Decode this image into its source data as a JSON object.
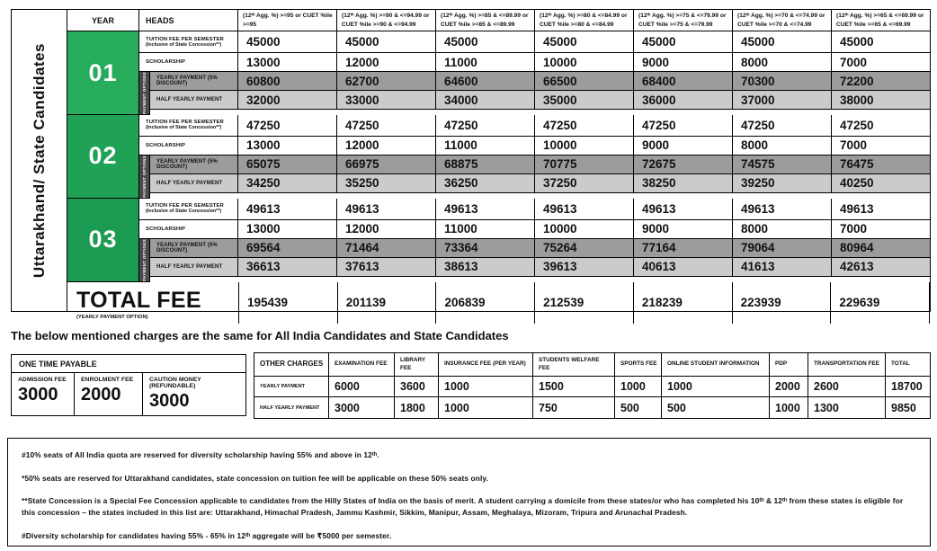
{
  "colors": {
    "year_greens": [
      "#27AC5C",
      "#1FA156",
      "#1B9A52"
    ],
    "yearly_row_bg": "#9c9c9c",
    "half_row_bg": "#cbcbcb",
    "strip_bg": "#4a4a4a"
  },
  "main_table": {
    "side_label": "Uttarakhand/ State Candidates",
    "year_header": "YEAR",
    "heads_header": "HEADS",
    "payment_options_label": "PAYMENT OPTIONS",
    "column_headers": [
      "(12ᵗʰ Agg. %) >=95 or CUET %ile >=95",
      "(12ᵗʰ Agg. %) >=90 & <=94.99 or CUET %ile >=90 & <=94.99",
      "(12ᵗʰ Agg. %) >=85 & <=89.99 or CUET %ile >=85 & <=89.99",
      "(12ᵗʰ Agg. %) >=80 & <=84.99 or CUET %ile >=80 & <=84.99",
      "(12ᵗʰ Agg. %) >=75 & <=79.99 or CUET %ile >=75 & <=79.99",
      "(12ᵗʰ Agg. %) >=70 & <=74.99 or CUET %ile >=70 & <=74.99",
      "(12ᵗʰ Agg. %) >=65 & <=69.99 or CUET %ile >=65 & <=69.99"
    ],
    "row_labels": {
      "tuition": "TUITION FEE PER SEMESTER",
      "tuition_sub": "(Inclusive of State Concession**)",
      "scholarship": "SCHOLARSHIP",
      "yearly": "YEARLY PAYMENT (5% DISCOUNT)",
      "half_yearly": "HALF YEARLY PAYMENT"
    },
    "years": [
      {
        "year": "01",
        "tuition": [
          "45000",
          "45000",
          "45000",
          "45000",
          "45000",
          "45000",
          "45000"
        ],
        "scholarship": [
          "13000",
          "12000",
          "11000",
          "10000",
          "9000",
          "8000",
          "7000"
        ],
        "yearly": [
          "60800",
          "62700",
          "64600",
          "66500",
          "68400",
          "70300",
          "72200"
        ],
        "half_yearly": [
          "32000",
          "33000",
          "34000",
          "35000",
          "36000",
          "37000",
          "38000"
        ]
      },
      {
        "year": "02",
        "tuition": [
          "47250",
          "47250",
          "47250",
          "47250",
          "47250",
          "47250",
          "47250"
        ],
        "scholarship": [
          "13000",
          "12000",
          "11000",
          "10000",
          "9000",
          "8000",
          "7000"
        ],
        "yearly": [
          "65075",
          "66975",
          "68875",
          "70775",
          "72675",
          "74575",
          "76475"
        ],
        "half_yearly": [
          "34250",
          "35250",
          "36250",
          "37250",
          "38250",
          "39250",
          "40250"
        ]
      },
      {
        "year": "03",
        "tuition": [
          "49613",
          "49613",
          "49613",
          "49613",
          "49613",
          "49613",
          "49613"
        ],
        "scholarship": [
          "13000",
          "12000",
          "11000",
          "10000",
          "9000",
          "8000",
          "7000"
        ],
        "yearly": [
          "69564",
          "71464",
          "73364",
          "75264",
          "77164",
          "79064",
          "80964"
        ],
        "half_yearly": [
          "36613",
          "37613",
          "38613",
          "39613",
          "40613",
          "41613",
          "42613"
        ]
      }
    ],
    "total": {
      "label": "TOTAL FEE",
      "sublabel": "(YEARLY PAYMENT OPTION)",
      "values": [
        "195439",
        "201139",
        "206839",
        "212539",
        "218239",
        "223939",
        "229639"
      ]
    }
  },
  "below_note": "The below mentioned charges are the same for All India Candidates and State Candidates",
  "one_time_payable": {
    "header": "ONE TIME PAYABLE",
    "items": [
      {
        "label": "ADMISSION FEE",
        "value": "3000"
      },
      {
        "label": "ENROLMENT FEE",
        "value": "2000"
      },
      {
        "label": "CAUTION MONEY (REFUNDABLE)",
        "value": "3000"
      }
    ]
  },
  "other_charges": {
    "header": "OTHER CHARGES",
    "columns": [
      "EXAMINATION FEE",
      "LIBRARY FEE",
      "INSURANCE FEE (PER YEAR)",
      "STUDENTS WELFARE FEE",
      "SPORTS FEE",
      "ONLINE STUDENT INFORMATION",
      "PDP",
      "TRANSPORTATION FEE",
      "TOTAL"
    ],
    "rows": [
      {
        "label": "YEARLY PAYMENT",
        "values": [
          "6000",
          "3600",
          "1000",
          "1500",
          "1000",
          "1000",
          "2000",
          "2600",
          "18700"
        ]
      },
      {
        "label": "HALF YEARLY PAYMENT",
        "values": [
          "3000",
          "1800",
          "1000",
          "750",
          "500",
          "500",
          "1000",
          "1300",
          "9850"
        ]
      }
    ]
  },
  "footnotes": [
    "#10% seats of All India quota are reserved for diversity scholarship having 55% and above in 12ᵗʰ.",
    "*50% seats are reserved for Uttarakhand candidates, state concession on tuition fee will be applicable on these 50% seats only.",
    "**State Concession is a Special Fee Concession applicable to candidates from the Hilly States of India on the basis of merit. A student carrying a domicile from these states/or who has completed his 10ᵗʰ & 12ᵗʰ from these states is eligible for this concession – the states included in this list are: Uttarakhand, Himachal Pradesh, Jammu Kashmir, Sikkim, Manipur, Assam, Meghalaya, Mizoram, Tripura and Arunachal Pradesh.",
    "#Diversity scholarship for candidates having 55% - 65% in 12ᵗʰ aggregate will be ₹5000 per semester."
  ]
}
